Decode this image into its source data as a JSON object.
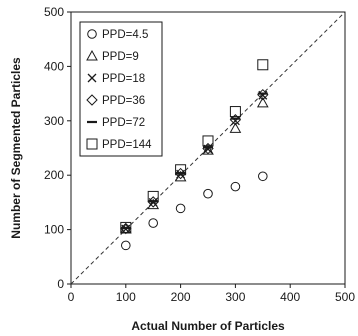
{
  "chart_data": {
    "type": "scatter",
    "xlabel": "Actual Number of Particles",
    "ylabel": "Number of Segmented Particles",
    "xlim": [
      0,
      500
    ],
    "ylim": [
      0,
      500
    ],
    "xticks": [
      0,
      100,
      200,
      300,
      400,
      500
    ],
    "yticks": [
      0,
      100,
      200,
      300,
      400,
      500
    ],
    "grid": false,
    "legend_position": "top-left",
    "reference_line": {
      "style": "dashed",
      "x": [
        0,
        500
      ],
      "y": [
        0,
        500
      ]
    },
    "series": [
      {
        "name": "PPD=4.5",
        "marker": "circle",
        "x": [
          100,
          150,
          200,
          250,
          300,
          350
        ],
        "y": [
          71,
          112,
          139,
          166,
          179,
          198
        ]
      },
      {
        "name": "PPD=9",
        "marker": "triangle",
        "x": [
          100,
          150,
          200,
          250,
          300,
          350
        ],
        "y": [
          101,
          146,
          197,
          246,
          286,
          333
        ]
      },
      {
        "name": "PPD=18",
        "marker": "x",
        "x": [
          100,
          150,
          200,
          250,
          300,
          350
        ],
        "y": [
          101,
          150,
          202,
          248,
          300,
          347
        ]
      },
      {
        "name": "PPD=36",
        "marker": "diamond",
        "x": [
          100,
          150,
          200,
          250,
          300,
          350
        ],
        "y": [
          102,
          151,
          203,
          249,
          302,
          348
        ]
      },
      {
        "name": "PPD=72",
        "marker": "dash",
        "x": [
          100,
          150,
          200,
          250,
          300,
          350
        ],
        "y": [
          103,
          152,
          204,
          251,
          304,
          350
        ]
      },
      {
        "name": "PPD=144",
        "marker": "square",
        "x": [
          100,
          150,
          200,
          250,
          300,
          350
        ],
        "y": [
          104,
          161,
          210,
          263,
          317,
          403
        ]
      }
    ]
  }
}
